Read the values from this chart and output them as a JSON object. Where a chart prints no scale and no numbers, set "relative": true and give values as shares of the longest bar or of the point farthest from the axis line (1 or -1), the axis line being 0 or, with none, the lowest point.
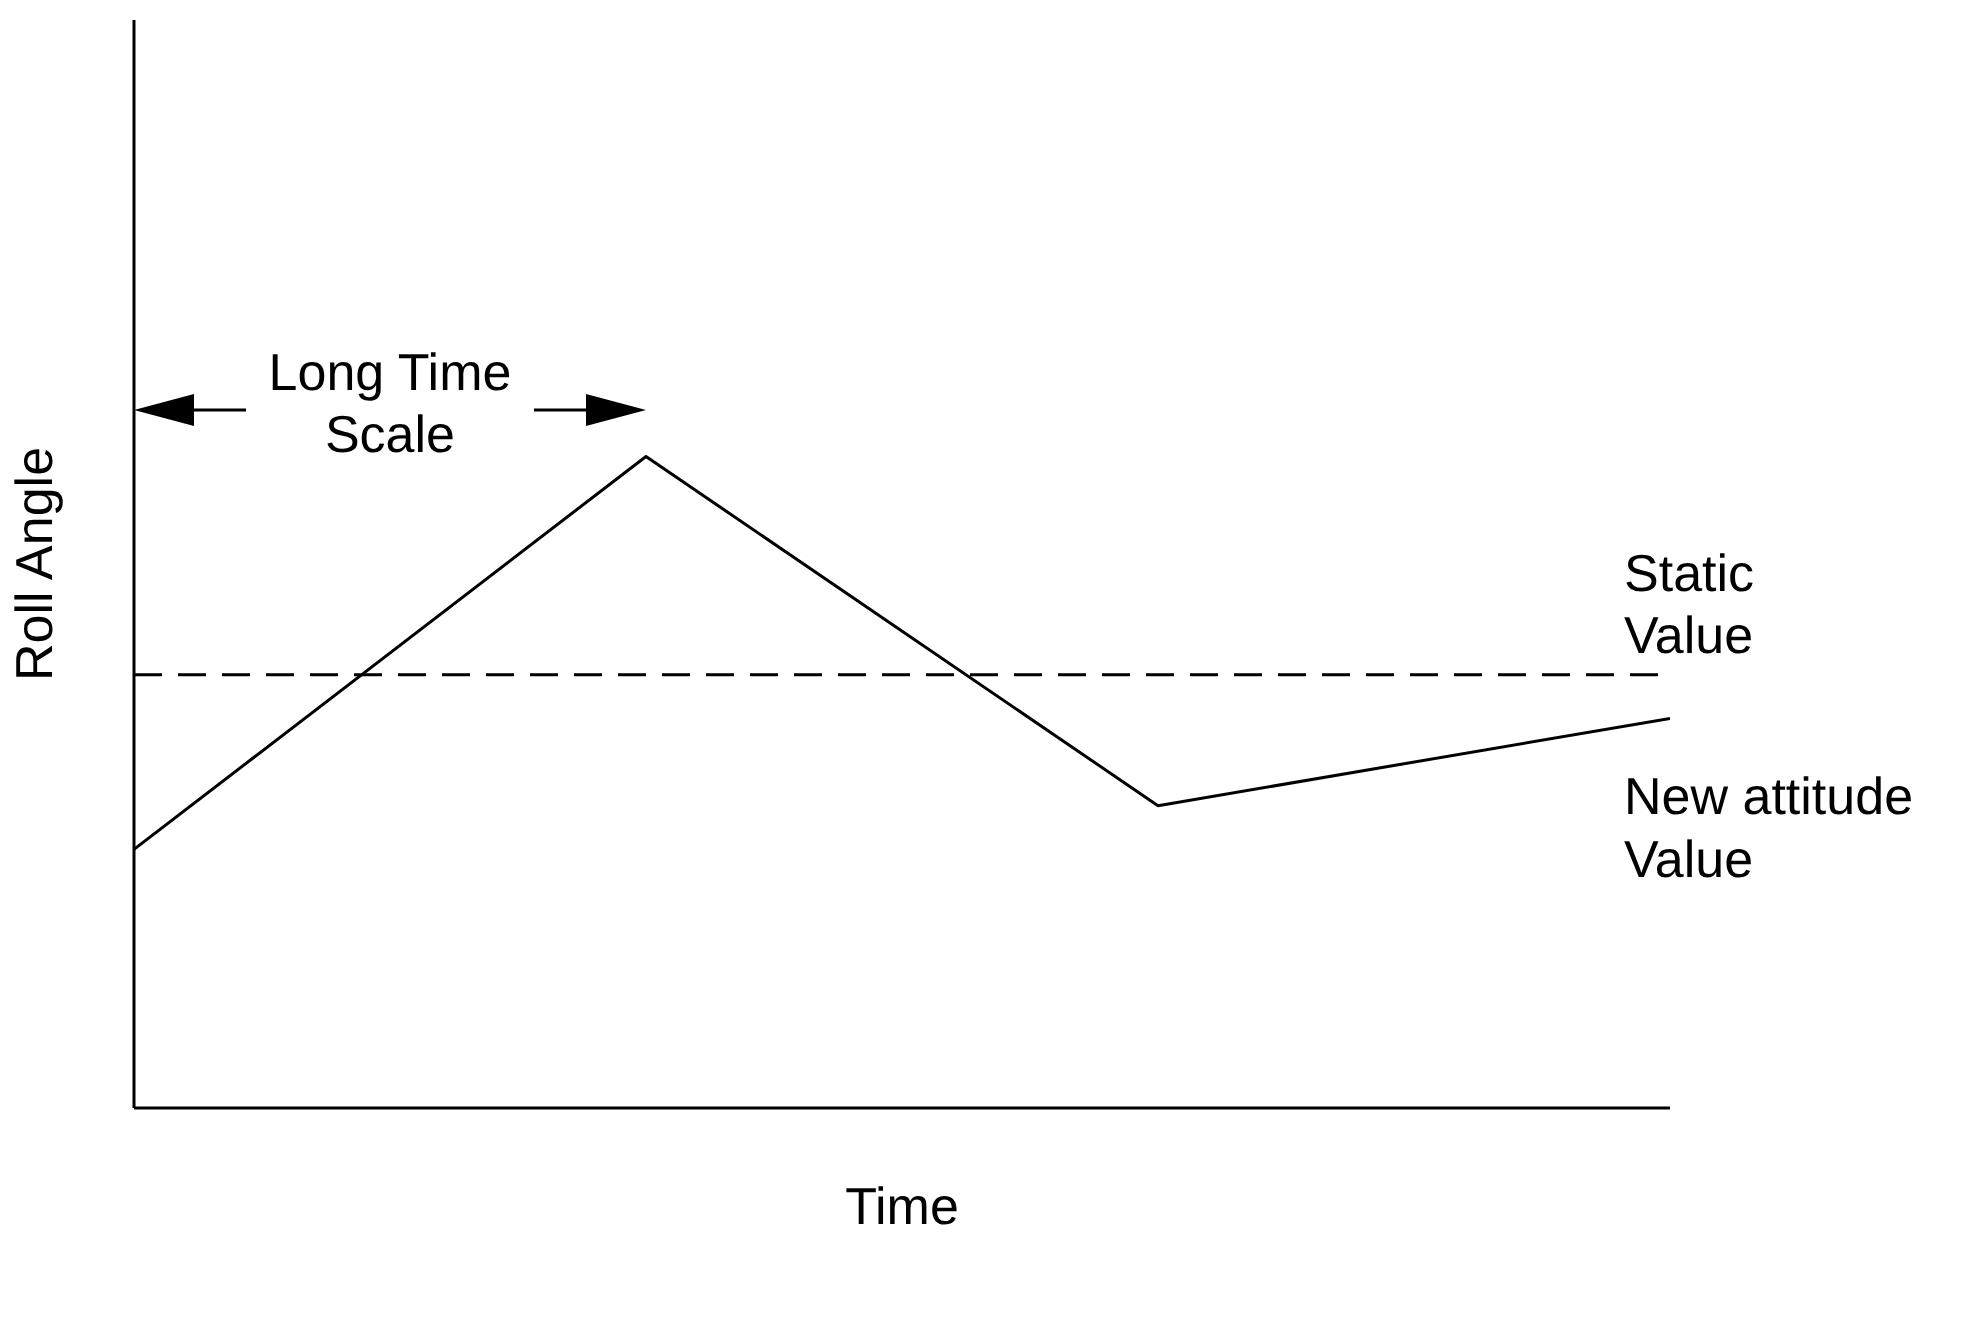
{
  "chart_data": {
    "type": "line",
    "xlabel": "Time",
    "ylabel": "Roll Angle",
    "categories": [
      null,
      null,
      null,
      null
    ],
    "relative": true,
    "series": [
      {
        "name": "New attitude Value",
        "color": "#000000",
        "values": [
          0.397,
          1,
          0.464,
          0.598
        ]
      }
    ],
    "ref_lines": [
      {
        "axis": "y",
        "value": 0.665,
        "label": "Static Value",
        "line_style": "dashed",
        "color": "#000000"
      }
    ],
    "annotations": [
      "Long Time Scale"
    ]
  }
}
